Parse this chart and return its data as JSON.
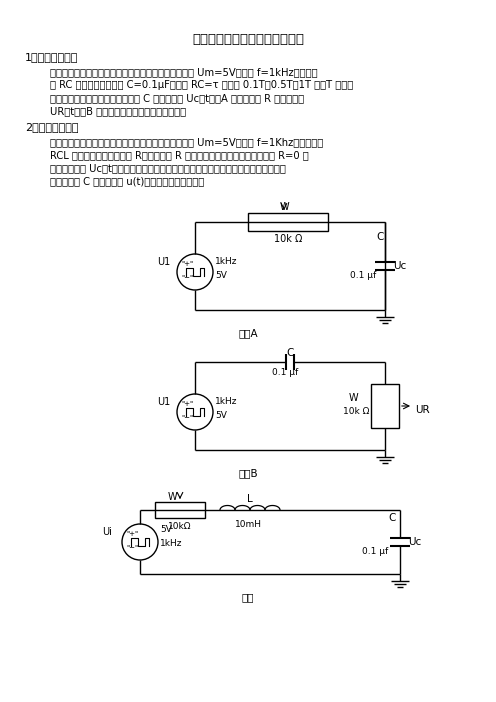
{
  "title": "电路过渡过程的观测和研究实验",
  "s1_title": "1、一阶过渡过程",
  "s1_lines": [
    "如图一：将函数信号发生器输出的矩形波电压幅值调至 Um=5V、频率 f=1kHz，作为一",
    "阶 RC 电路的输入。电容 C=0.1μF，使得 RC=τ 分别为 0.1T、0.5T、1T 时（T 为输入",
    "信号的周期），用示波器观测电容 C 两端的电压 Uc（t）（A 图），电阻 R 两端的电压",
    "UR（t）（B 图）的波形，并记录于坐标纸上。"
  ],
  "s2_title": "2、二阶过渡过程",
  "s2_lines": [
    "如图二：将函数信号发生器输出的矩形波电压幅值调至 Um=5V、频率 f=1Khz，作为二阶",
    "RCL 电路的输入。改变电阻 R，观测电阻 R 的阻值对电路过程的影响，并记录 R=0 时",
    "电容两端电压 Uc（t）的波形及你认为最能典型地表明电路处于衰减震荡和临界阻尼状",
    "态时，电容 C 两端的电压 u(t)的波形及电阻参数值。"
  ],
  "fig_a_label": "图一A",
  "fig_b_label": "图一B",
  "fig2_label": "图二",
  "bg": "#ffffff"
}
